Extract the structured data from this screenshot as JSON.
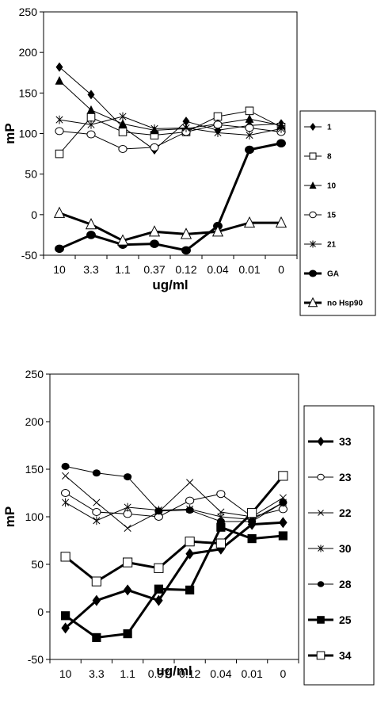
{
  "chart_data": [
    {
      "type": "line",
      "xlabel": "ug/ml",
      "ylabel": "mP",
      "ylim": [
        -50,
        250
      ],
      "yticks": [
        250,
        200,
        150,
        100,
        50,
        0,
        -50
      ],
      "categories": [
        "10",
        "3.3",
        "1.1",
        "0.37",
        "0.12",
        "0.04",
        "0.01",
        "0"
      ],
      "grid": false,
      "legend_position": "right",
      "series": [
        {
          "name": "1",
          "marker": "diamond",
          "weight": "thin",
          "values": [
            182,
            148,
            108,
            80,
            115,
            104,
            110,
            112
          ]
        },
        {
          "name": "8",
          "marker": "square-open",
          "weight": "thin",
          "values": [
            75,
            120,
            102,
            98,
            102,
            121,
            128,
            108
          ]
        },
        {
          "name": "10",
          "marker": "triangle-filled",
          "weight": "thin",
          "values": [
            165,
            129,
            112,
            104,
            106,
            112,
            118,
            110
          ]
        },
        {
          "name": "15",
          "marker": "circle-open",
          "weight": "thin",
          "values": [
            103,
            99,
            81,
            83,
            102,
            111,
            107,
            102
          ]
        },
        {
          "name": "21",
          "marker": "asterisk",
          "weight": "thin",
          "values": [
            117,
            111,
            121,
            106,
            107,
            101,
            98,
            106
          ]
        },
        {
          "name": "GA",
          "marker": "circle-filled",
          "weight": "bold",
          "values": [
            -42,
            -25,
            -37,
            -36,
            -44,
            -14,
            80,
            88
          ]
        },
        {
          "name": "no Hsp90",
          "marker": "triangle-open",
          "weight": "bold",
          "values": [
            2,
            -12,
            -32,
            -21,
            -24,
            -21,
            -10,
            -10
          ]
        }
      ]
    },
    {
      "type": "line",
      "xlabel": "ug/ml",
      "ylabel": "mP",
      "ylim": [
        -50,
        250
      ],
      "yticks": [
        250,
        200,
        150,
        100,
        50,
        0,
        -50
      ],
      "categories": [
        "10",
        "3.3",
        "1.1",
        "0.37",
        "0.12",
        "0.04",
        "0.01",
        "0"
      ],
      "grid": false,
      "legend_position": "right",
      "series": [
        {
          "name": "33",
          "marker": "diamond",
          "weight": "bold",
          "values": [
            -17,
            12,
            23,
            12,
            61,
            66,
            92,
            94
          ]
        },
        {
          "name": "23",
          "marker": "circle-open",
          "weight": "thin",
          "values": [
            125,
            105,
            103,
            100,
            117,
            124,
            100,
            108
          ]
        },
        {
          "name": "22",
          "marker": "x",
          "weight": "thin",
          "values": [
            143,
            115,
            88,
            105,
            136,
            105,
            100,
            120
          ]
        },
        {
          "name": "30",
          "marker": "asterisk",
          "weight": "thin",
          "values": [
            115,
            96,
            110,
            107,
            108,
            100,
            97,
            115
          ]
        },
        {
          "name": "28",
          "marker": "circle-filled",
          "weight": "thin",
          "values": [
            153,
            146,
            142,
            106,
            107,
            95,
            95,
            115
          ]
        },
        {
          "name": "25",
          "marker": "square-filled",
          "weight": "bold",
          "values": [
            -4,
            -27,
            -23,
            24,
            23,
            89,
            77,
            80
          ]
        },
        {
          "name": "34",
          "marker": "square-open",
          "weight": "bold",
          "values": [
            58,
            32,
            52,
            46,
            74,
            72,
            104,
            143
          ]
        }
      ]
    }
  ]
}
